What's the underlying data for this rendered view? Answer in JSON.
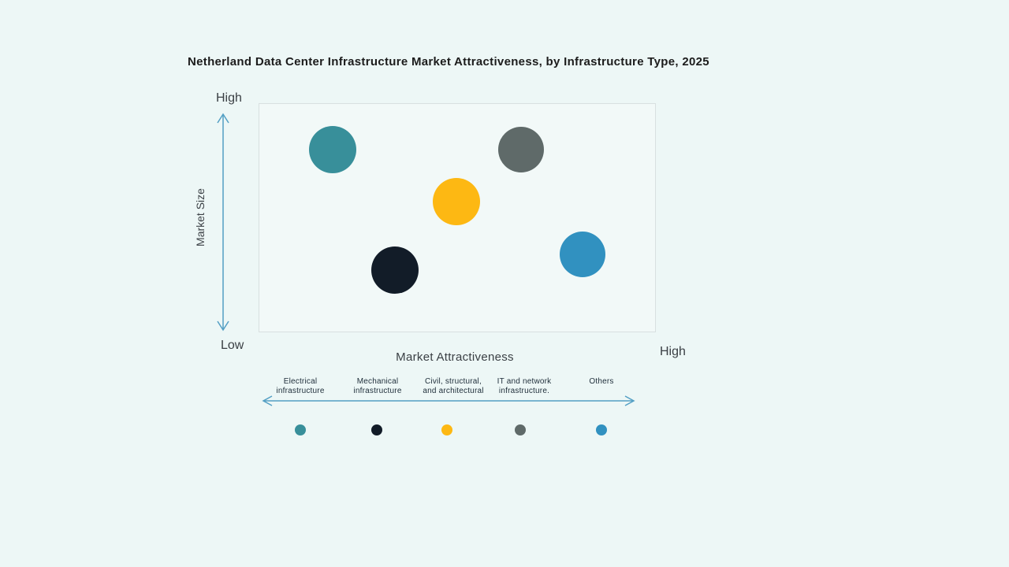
{
  "title": "Netherland Data Center Infrastructure Market Attractiveness, by Infrastructure Type, 2025",
  "colors": {
    "background": "#edf7f6",
    "plot_background": "#f2f9f8",
    "plot_border": "#d8e0e0",
    "arrow": "#539fc4",
    "title_text": "#1c1c1c",
    "axis_text": "#3a3f44",
    "category_text": "#1e2d39"
  },
  "y_axis": {
    "top_label": "High",
    "bottom_label": "Low",
    "axis_label": "Market Size"
  },
  "x_axis": {
    "axis_label": "Market Attractiveness",
    "right_label": "High",
    "categories": [
      {
        "line1": "Electrical",
        "line2": "infrastructure"
      },
      {
        "line1": "Mechanical",
        "line2": "infrastructure"
      },
      {
        "line1": "Civil, structural,",
        "line2": "and architectural"
      },
      {
        "line1": "IT and network",
        "line2": "infrastructure."
      },
      {
        "line1": "Others",
        "line2": ""
      }
    ]
  },
  "chart_data": {
    "type": "scatter",
    "title": "Netherland Data Center Infrastructure Market Attractiveness, by Infrastructure Type, 2025",
    "xlabel": "Market Attractiveness",
    "ylabel": "Market Size",
    "x_range": [
      0,
      1
    ],
    "y_range": [
      0,
      1
    ],
    "grid": false,
    "legend_position": "bottom",
    "series": [
      {
        "name": "Electrical infrastructure",
        "x": 0.185,
        "y": 0.8,
        "r": 30,
        "color": "#388f9a"
      },
      {
        "name": "Mechanical infrastructure",
        "x": 0.341,
        "y": 0.275,
        "r": 30,
        "color": "#121c28"
      },
      {
        "name": "Civil, structural, and architectural",
        "x": 0.496,
        "y": 0.575,
        "r": 30,
        "color": "#fdb813"
      },
      {
        "name": "IT and network infrastructure.",
        "x": 0.659,
        "y": 0.8,
        "r": 29,
        "color": "#5f6a69"
      },
      {
        "name": "Others",
        "x": 0.813,
        "y": 0.345,
        "r": 29,
        "color": "#3191c0"
      }
    ]
  }
}
